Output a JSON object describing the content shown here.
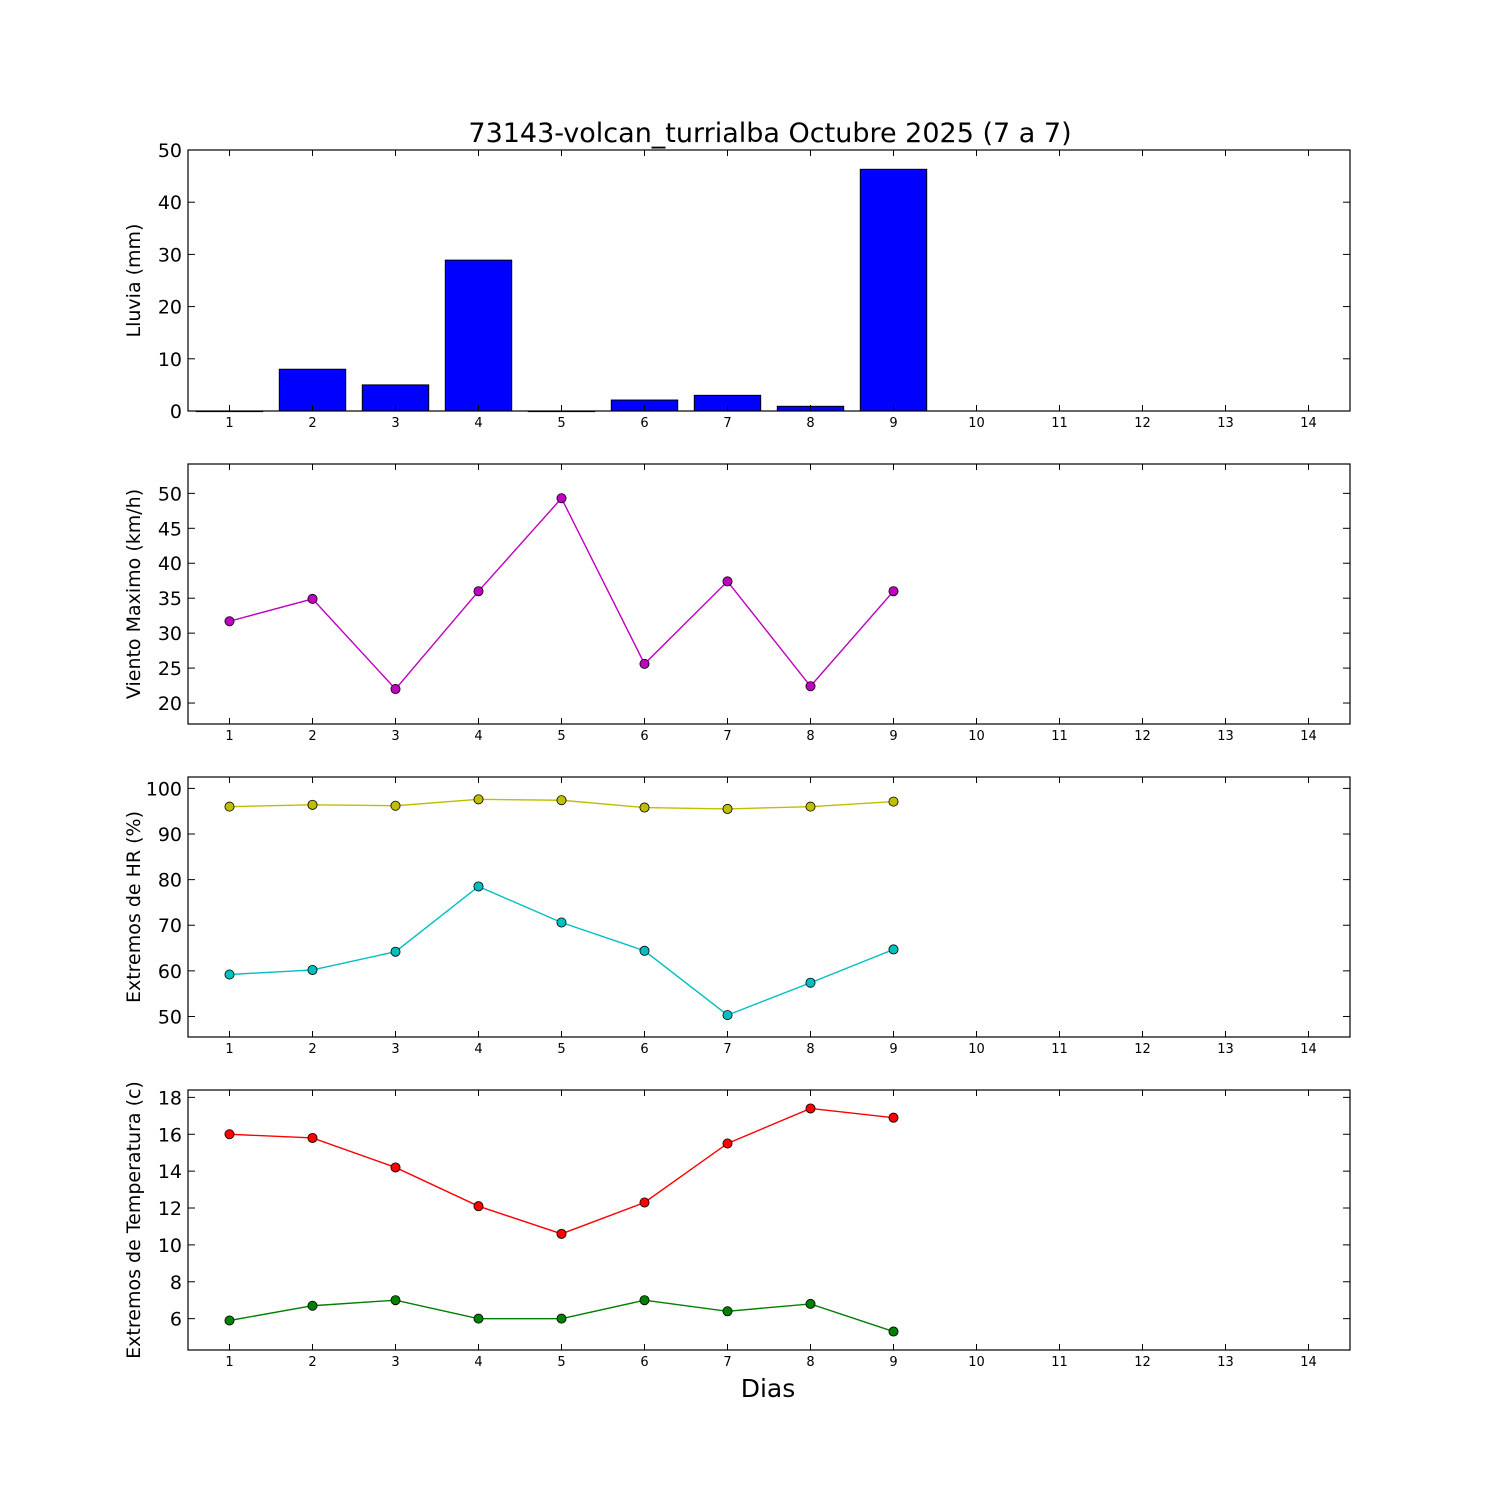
{
  "figure": {
    "title": "73143-volcan_turrialba Octubre 2025  (7 a 7)",
    "xlabel": "Dias"
  },
  "chart_data": [
    {
      "type": "bar",
      "ylabel": "Lluvia (mm)",
      "xlim": [
        0.5,
        14.5
      ],
      "ylim": [
        0,
        50
      ],
      "xticks": [
        1,
        2,
        3,
        4,
        5,
        6,
        7,
        8,
        9,
        10,
        11,
        12,
        13,
        14
      ],
      "yticks": [
        0,
        10,
        20,
        30,
        40,
        50
      ],
      "grid": false,
      "x": [
        1,
        2,
        3,
        4,
        5,
        6,
        7,
        8,
        9
      ],
      "series": [
        {
          "values": [
            0.0,
            8.0,
            5.0,
            28.9,
            0.0,
            2.1,
            3.0,
            0.9,
            46.3
          ],
          "color": "#0000ff"
        }
      ]
    },
    {
      "type": "line",
      "ylabel": "Viento Maximo (km/h)",
      "xlim": [
        0.5,
        14.5
      ],
      "ylim": [
        17,
        54.2
      ],
      "xticks": [
        1,
        2,
        3,
        4,
        5,
        6,
        7,
        8,
        9,
        10,
        11,
        12,
        13,
        14
      ],
      "yticks": [
        20,
        25,
        30,
        35,
        40,
        45,
        50
      ],
      "grid": false,
      "x": [
        1,
        2,
        3,
        4,
        5,
        6,
        7,
        8,
        9
      ],
      "series": [
        {
          "values": [
            31.7,
            34.9,
            22.0,
            36.0,
            49.3,
            25.6,
            37.4,
            22.4,
            36.0
          ],
          "color": "#bf00bf"
        }
      ]
    },
    {
      "type": "line",
      "ylabel": "Extremos de HR (%)",
      "xlim": [
        0.5,
        14.5
      ],
      "ylim": [
        45.5,
        102.5
      ],
      "xticks": [
        1,
        2,
        3,
        4,
        5,
        6,
        7,
        8,
        9,
        10,
        11,
        12,
        13,
        14
      ],
      "yticks": [
        50,
        60,
        70,
        80,
        90,
        100
      ],
      "grid": false,
      "x": [
        1,
        2,
        3,
        4,
        5,
        6,
        7,
        8,
        9
      ],
      "series": [
        {
          "values": [
            96.0,
            96.4,
            96.2,
            97.6,
            97.4,
            95.8,
            95.5,
            96.0,
            97.1
          ],
          "color": "#bfbf00"
        },
        {
          "values": [
            59.2,
            60.2,
            64.2,
            78.5,
            70.6,
            64.4,
            50.3,
            57.4,
            64.7
          ],
          "color": "#00bfbf"
        }
      ]
    },
    {
      "type": "line",
      "ylabel": "Extremos de Temperatura (c)",
      "xlim": [
        0.5,
        14.5
      ],
      "ylim": [
        4.3,
        18.4
      ],
      "xticks": [
        1,
        2,
        3,
        4,
        5,
        6,
        7,
        8,
        9,
        10,
        11,
        12,
        13,
        14
      ],
      "yticks": [
        6,
        8,
        10,
        12,
        14,
        16,
        18
      ],
      "grid": false,
      "x": [
        1,
        2,
        3,
        4,
        5,
        6,
        7,
        8,
        9
      ],
      "series": [
        {
          "values": [
            16.0,
            15.8,
            14.2,
            12.1,
            10.6,
            12.3,
            15.5,
            17.4,
            16.9
          ],
          "color": "#ff0000"
        },
        {
          "values": [
            5.9,
            6.7,
            7.0,
            6.0,
            6.0,
            7.0,
            6.4,
            6.8,
            5.3
          ],
          "color": "#008000"
        }
      ]
    }
  ]
}
